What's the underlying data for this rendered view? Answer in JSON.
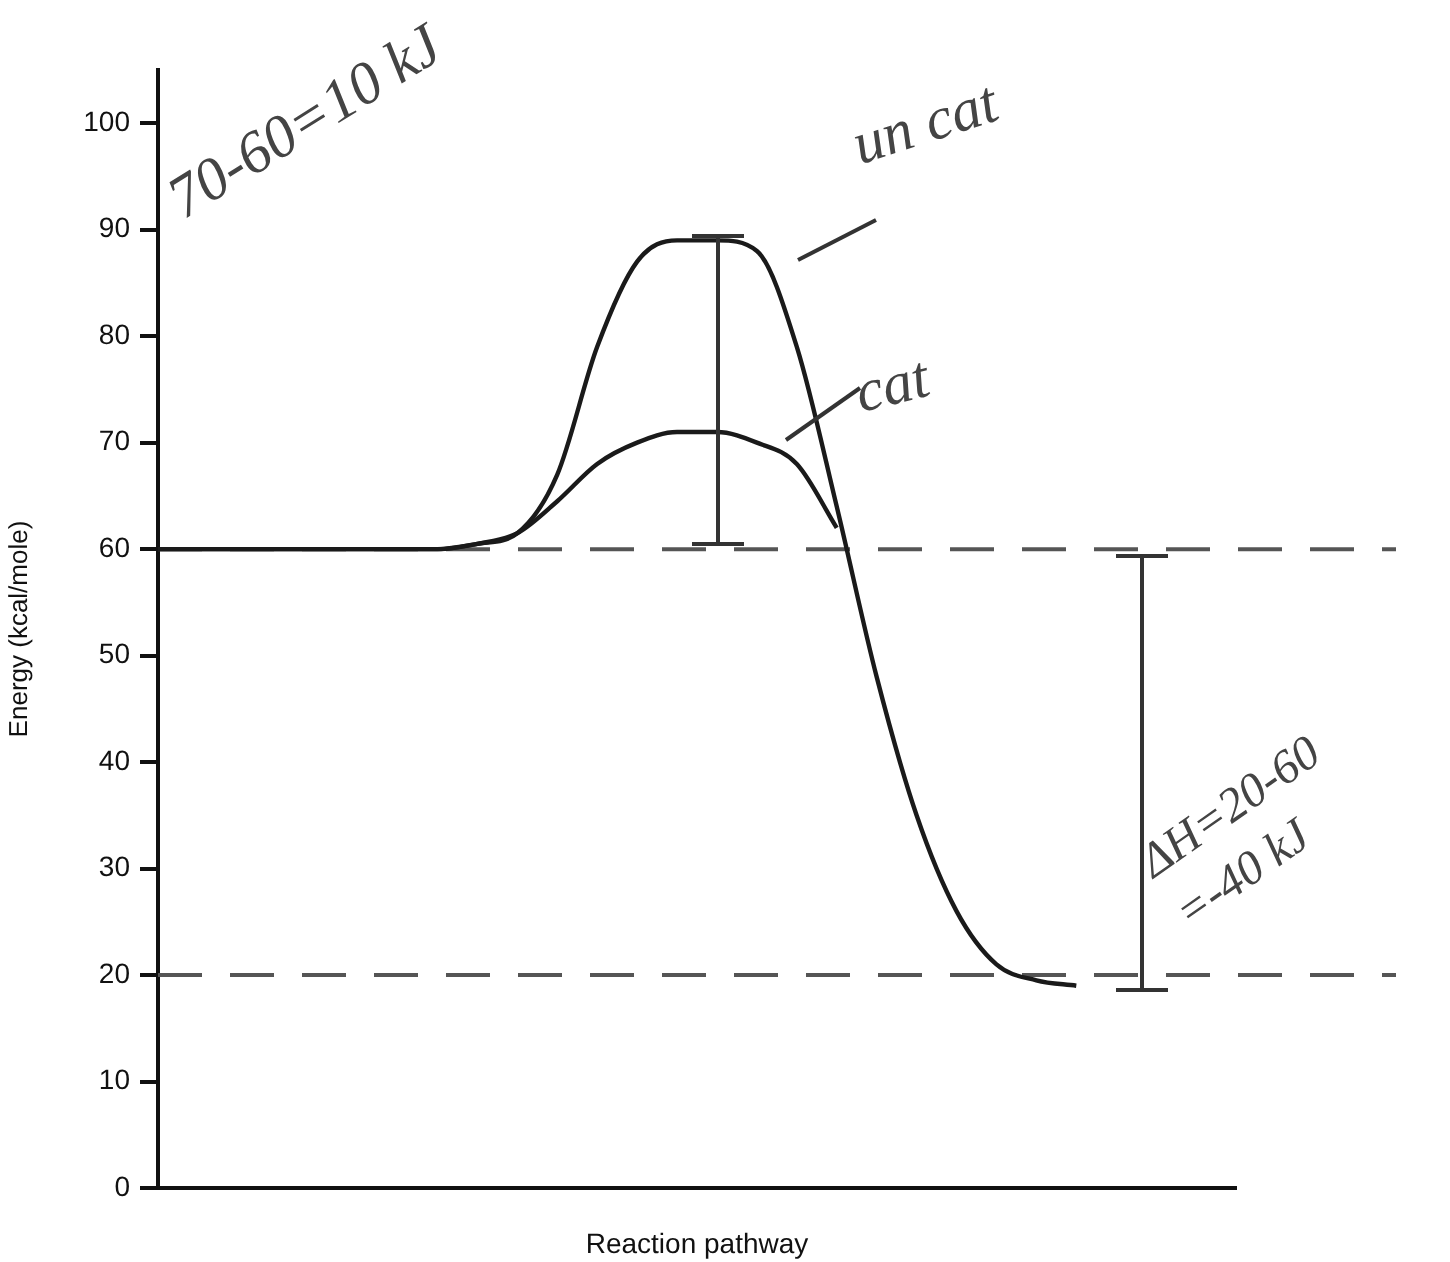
{
  "chart_data": {
    "type": "line",
    "xlabel": "Reaction pathway",
    "ylabel": "Energy (kcal/mole)",
    "categories": [
      null,
      null,
      null,
      null,
      null,
      null,
      null,
      null,
      null,
      null,
      null,
      null,
      null,
      null,
      null,
      null,
      null,
      null,
      null,
      null,
      null,
      null,
      null,
      null,
      null,
      null,
      null,
      null
    ],
    "series": [
      {
        "color": "#1a1a1a",
        "values": [
          60,
          60,
          60,
          60,
          60,
          60,
          60,
          60,
          60.5,
          61.5,
          67,
          79,
          87,
          89,
          89,
          88,
          79,
          64,
          48,
          35,
          26,
          21,
          19.5,
          19,
          null,
          null,
          null,
          null
        ]
      },
      {
        "color": "#1a1a1a",
        "values": [
          60,
          60,
          60,
          60,
          60,
          60,
          60,
          60,
          60.5,
          61.5,
          64.5,
          68,
          70,
          71,
          71,
          70,
          68,
          62,
          null,
          null,
          null,
          null,
          null,
          null,
          null,
          null,
          null,
          null
        ]
      }
    ],
    "ylim": [
      0,
      105
    ],
    "yticks": [
      0,
      10,
      20,
      30,
      40,
      50,
      60,
      70,
      80,
      90,
      100
    ],
    "grid": false,
    "legend": false,
    "marker": "none",
    "line_style": "solid",
    "tick_labels": "y",
    "ref_lines": [
      {
        "axis": "y",
        "value": 60,
        "color": "#555555",
        "line_style": "dashed"
      },
      {
        "axis": "y",
        "value": 20,
        "color": "#555555",
        "line_style": "dashed"
      }
    ],
    "annotations": [
      "70-60=10 kJ",
      "un cat",
      "cat",
      "ΔH=20-60 =-40 kJ"
    ]
  }
}
